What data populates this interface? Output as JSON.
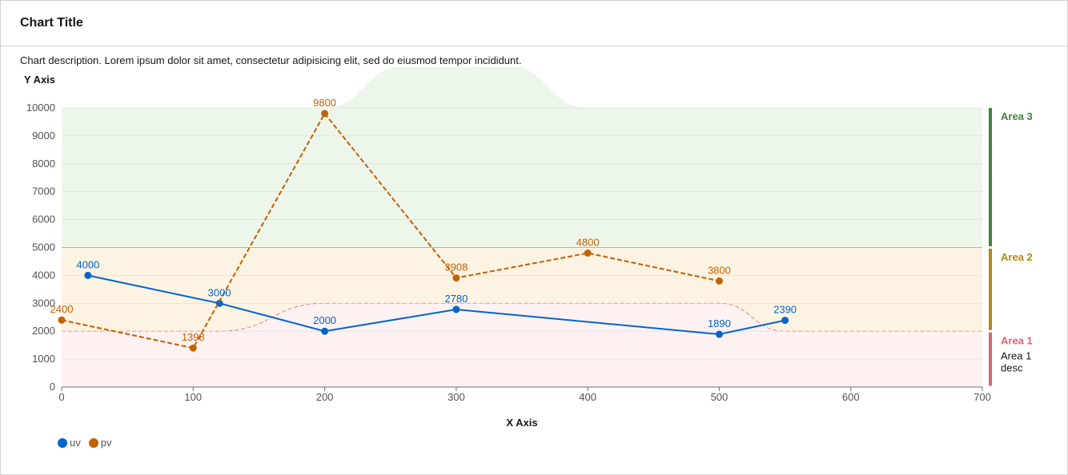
{
  "card": {
    "title": "Chart Title",
    "description": "Chart description. Lorem ipsum dolor sit amet, consectetur adipisicing elit, sed do eiusmod tempor incididunt."
  },
  "chart_data": {
    "type": "line",
    "xlabel": "X Axis",
    "ylabel": "Y Axis",
    "xlim": [
      0,
      700
    ],
    "ylim": [
      0,
      10000
    ],
    "x_ticks": [
      0,
      100,
      200,
      300,
      400,
      500,
      600,
      700
    ],
    "y_ticks": [
      0,
      1000,
      2000,
      3000,
      4000,
      5000,
      6000,
      7000,
      8000,
      9000,
      10000
    ],
    "grid": "horizontal",
    "legend_position": "bottom-left",
    "series": [
      {
        "name": "uv",
        "color": "#0066cc",
        "style": "solid",
        "points": [
          {
            "x": 20,
            "y": 4000,
            "label": "4000"
          },
          {
            "x": 120,
            "y": 3000,
            "label": "3000"
          },
          {
            "x": 200,
            "y": 2000,
            "label": "2000"
          },
          {
            "x": 300,
            "y": 2780,
            "label": "2780"
          },
          {
            "x": 500,
            "y": 1890,
            "label": "1890"
          },
          {
            "x": 550,
            "y": 2390,
            "label": "2390"
          }
        ]
      },
      {
        "name": "pv",
        "color": "#c46100",
        "style": "dashed",
        "points": [
          {
            "x": 0,
            "y": 2400,
            "label": "2400"
          },
          {
            "x": 100,
            "y": 1398,
            "label": "1398"
          },
          {
            "x": 200,
            "y": 9800,
            "label": "9800"
          },
          {
            "x": 300,
            "y": 3908,
            "label": "3908"
          },
          {
            "x": 400,
            "y": 4800,
            "label": "4800"
          },
          {
            "x": 500,
            "y": 3800,
            "label": "3800"
          }
        ]
      }
    ],
    "thresholds": [
      {
        "name": "Area 1",
        "description": "Area 1 desc",
        "color": "#e0636d",
        "fill": "#fdf1f2",
        "from": 0,
        "to": 2000,
        "curve": [
          [
            0,
            2000
          ],
          [
            120,
            2000
          ],
          [
            200,
            3000
          ],
          [
            500,
            3000
          ],
          [
            550,
            2000
          ],
          [
            700,
            2000
          ]
        ]
      },
      {
        "name": "Area 2",
        "description": "",
        "color": "#b8860b",
        "fill": "#fdf3e2",
        "from": 2000,
        "to": 5000
      },
      {
        "name": "Area 3",
        "description": "",
        "color": "#3e8635",
        "fill": "#edf6ea",
        "from": 5000,
        "to": 10000,
        "curve": [
          [
            0,
            10000
          ],
          [
            200,
            10000
          ],
          [
            260,
            11500
          ],
          [
            340,
            11500
          ],
          [
            400,
            10000
          ],
          [
            700,
            10000
          ]
        ]
      }
    ]
  }
}
